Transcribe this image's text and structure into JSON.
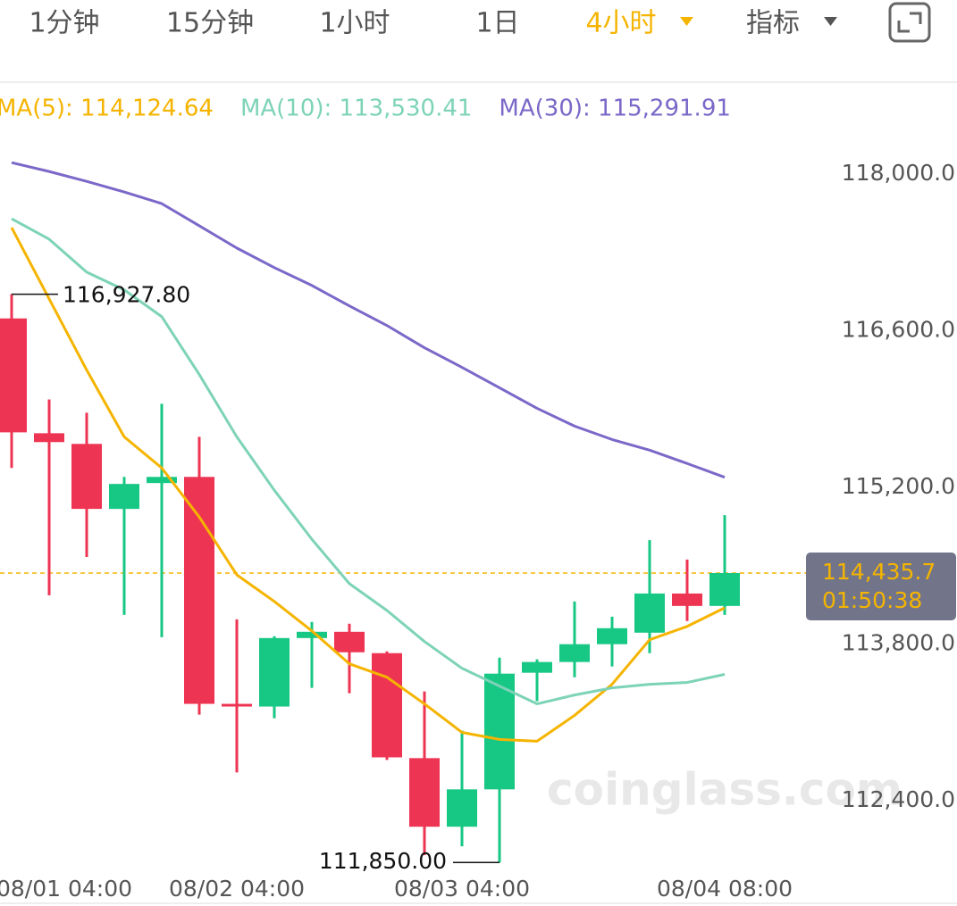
{
  "tabs": [
    "1分钟",
    "15分钟",
    "1小时",
    "1日",
    "4小时",
    "指标"
  ],
  "active_tab": 4,
  "chart_data": {
    "type": "candlestick",
    "watermark": "coinglass.com",
    "categories": [
      "08/01 04:00",
      null,
      null,
      null,
      null,
      null,
      "08/02 04:00",
      null,
      null,
      null,
      null,
      null,
      "08/03 04:00",
      null,
      null,
      null,
      null,
      null,
      null,
      "08/04 08:00"
    ],
    "open": [
      116711,
      115685,
      115590,
      115009,
      115240,
      115295,
      113267,
      113243,
      113855,
      113911,
      113720,
      112782,
      112169,
      112503,
      113545,
      113641,
      113800,
      113903,
      114253,
      114142
    ],
    "high": [
      116927.8,
      115987,
      115868,
      115295,
      115948,
      115653,
      114022,
      113871,
      113999,
      113983,
      113736,
      113378,
      113028,
      113680,
      113665,
      114182,
      114046,
      114730,
      114556,
      114953
    ],
    "low": [
      115375,
      114237,
      114579,
      114062,
      113863,
      113171,
      112654,
      113139,
      113410,
      113362,
      112766,
      111915,
      111994,
      111850,
      113291,
      113505,
      113601,
      113720,
      114007,
      114062
    ],
    "close": [
      115693,
      115606,
      115009,
      115232,
      115295,
      113267,
      113243,
      113855,
      113911,
      113728,
      112789,
      112169,
      112503,
      113537,
      113641,
      113800,
      113943,
      114253,
      114142,
      114435.7
    ],
    "up_color": "#17c784",
    "down_color": "#ee3453",
    "high_label": "116,927.80",
    "low_label": "111,850.00",
    "last_price_label": "114,435.7",
    "countdown": "01:50:38",
    "series": [
      {
        "name": "MA(5)",
        "legend_label": "MA(5): 114,124.64",
        "color": "#f5b400",
        "values": [
          117523,
          116886,
          116250,
          115653,
          115375,
          114937,
          114420,
          114182,
          113919,
          113625,
          113505,
          113267,
          113012,
          112949,
          112933,
          113164,
          113442,
          113840,
          113959,
          114124.64
        ]
      },
      {
        "name": "MA(10)",
        "legend_label": "MA(10): 113,530.41",
        "color": "#7dd3b8",
        "values": [
          117602,
          117419,
          117125,
          116966,
          116727,
          116210,
          115653,
          115176,
          114738,
          114341,
          114102,
          113824,
          113585,
          113426,
          113267,
          113346,
          113410,
          113442,
          113458,
          113530.41
        ]
      },
      {
        "name": "MA(30)",
        "legend_label": "MA(30): 115,291.91",
        "color": "#7b68c8",
        "values": [
          118103,
          118024,
          117936,
          117841,
          117737,
          117539,
          117340,
          117165,
          117006,
          116823,
          116648,
          116449,
          116274,
          116091,
          115908,
          115749,
          115629,
          115534,
          115415,
          115291.91
        ]
      }
    ],
    "ylim": [
      111700,
      118360
    ],
    "yticks": [
      {
        "value": 112400,
        "label": "112,400.0"
      },
      {
        "value": 113800,
        "label": "113,800.0"
      },
      {
        "value": 115200,
        "label": "115,200.0"
      },
      {
        "value": 116600,
        "label": "116,600.0"
      },
      {
        "value": 118000,
        "label": "118,000.0"
      }
    ],
    "grid": false
  }
}
